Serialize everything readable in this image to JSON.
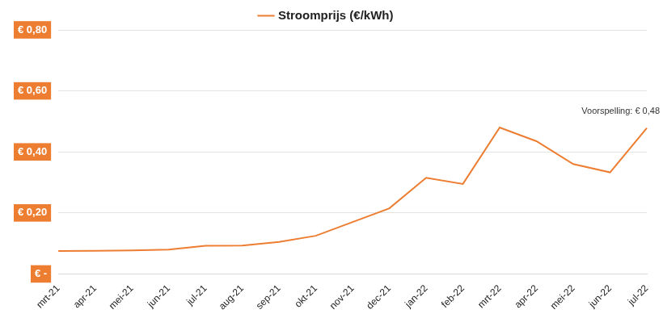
{
  "chart_data": {
    "type": "line",
    "categories": [
      "mrt-21",
      "apr-21",
      "mei-21",
      "jun-21",
      "jul-21",
      "aug-21",
      "sep-21",
      "okt-21",
      "nov-21",
      "dec-21",
      "jan-22",
      "feb-22",
      "mrt-22",
      "apr-22",
      "mei-22",
      "jun-22",
      "jul-22"
    ],
    "series": [
      {
        "name": "Stroomprijs (€/kWh)",
        "color": "#ed7d31",
        "values": [
          0.075,
          0.076,
          0.077,
          0.08,
          0.092,
          0.093,
          0.105,
          0.125,
          0.17,
          0.215,
          0.315,
          0.295,
          0.48,
          0.435,
          0.36,
          0.333,
          0.478
        ]
      }
    ],
    "ylim": [
      0,
      0.8
    ],
    "yticks": [
      {
        "value": 0,
        "label": "€ -"
      },
      {
        "value": 0.2,
        "label": "€ 0,20"
      },
      {
        "value": 0.4,
        "label": "€ 0,40"
      },
      {
        "value": 0.6,
        "label": "€ 0,60"
      },
      {
        "value": 0.8,
        "label": "€ 0,80"
      }
    ],
    "grid": true,
    "legend": "top",
    "annotations": [
      {
        "text": "Voorspelling: € 0,48",
        "x": "jul-22",
        "y": 0.48
      }
    ]
  }
}
